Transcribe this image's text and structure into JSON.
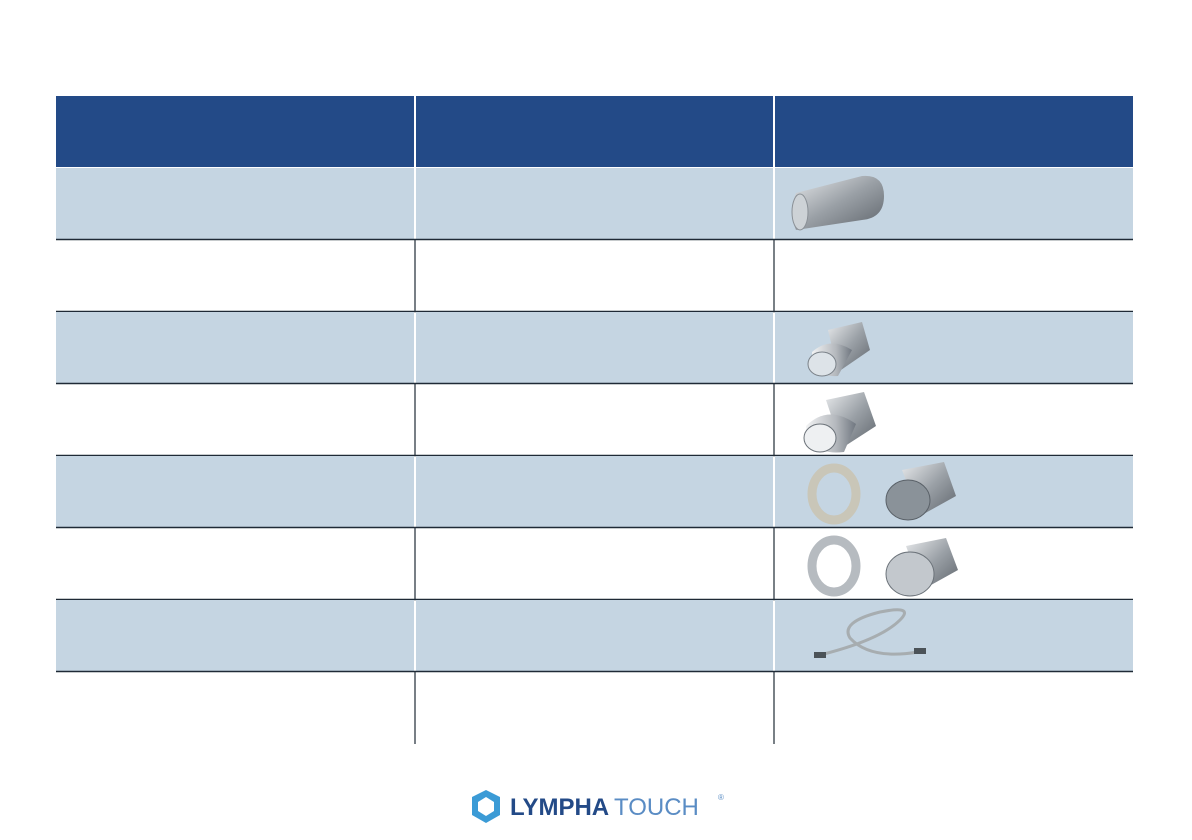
{
  "logo": {
    "name_bold": "LYMPHA",
    "name_light": "TOUCH",
    "mark": "®"
  }
}
